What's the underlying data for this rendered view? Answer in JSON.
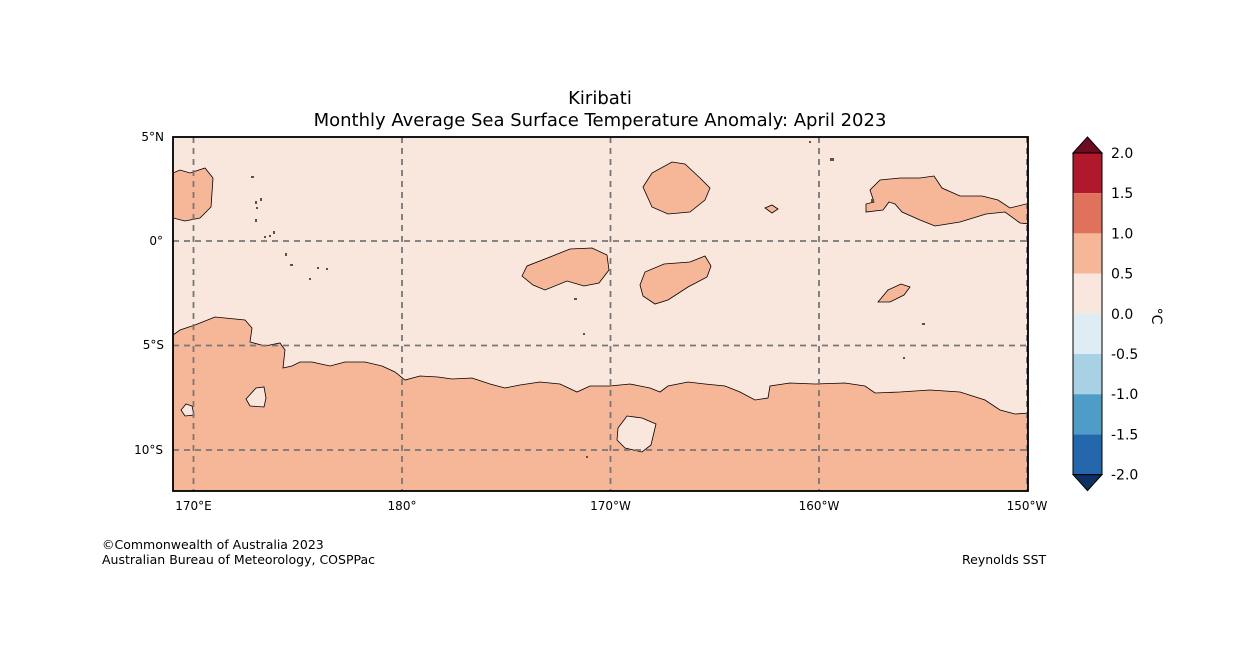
{
  "title": "Kiribati",
  "subtitle": "Monthly Average Sea Surface Temperature Anomaly: April 2023",
  "map": {
    "lon_labels": [
      "170°E",
      "180°",
      "170°W",
      "160°W",
      "150°W"
    ],
    "lat_labels": [
      "5°N",
      "0°",
      "5°S",
      "10°S"
    ],
    "extent": {
      "lon_min": 169.1,
      "lon_max": 210,
      "lat_min": -12,
      "lat_max": 5
    }
  },
  "colorbar": {
    "unit": "°C",
    "labels": [
      "2.0",
      "1.5",
      "1.0",
      "0.5",
      "0.0",
      "-0.5",
      "-1.0",
      "-1.5",
      "-2.0"
    ],
    "bins": [
      {
        "range": "1.5 to 2.0",
        "color": "#b2182b"
      },
      {
        "range": "1.0 to 1.5",
        "color": "#e0715b"
      },
      {
        "range": "0.5 to 1.0",
        "color": "#f6b698"
      },
      {
        "range": "0.0 to 0.5",
        "color": "#f9e6dc"
      },
      {
        "range": "-0.5 to 0.0",
        "color": "#deedf3"
      },
      {
        "range": "-1.0 to -0.5",
        "color": "#a8d1e6"
      },
      {
        "range": "-1.5 to -1.0",
        "color": "#4f9cc9"
      },
      {
        "range": "-2.0 to -1.5",
        "color": "#2467ad"
      }
    ],
    "over_color": "#6d0b1f",
    "under_color": "#0b3263"
  },
  "footer": {
    "copyright": "©Commonwealth of Australia 2023",
    "agency": "Australian Bureau of Meteorology, COSPPac",
    "source": "Reynolds SST"
  }
}
